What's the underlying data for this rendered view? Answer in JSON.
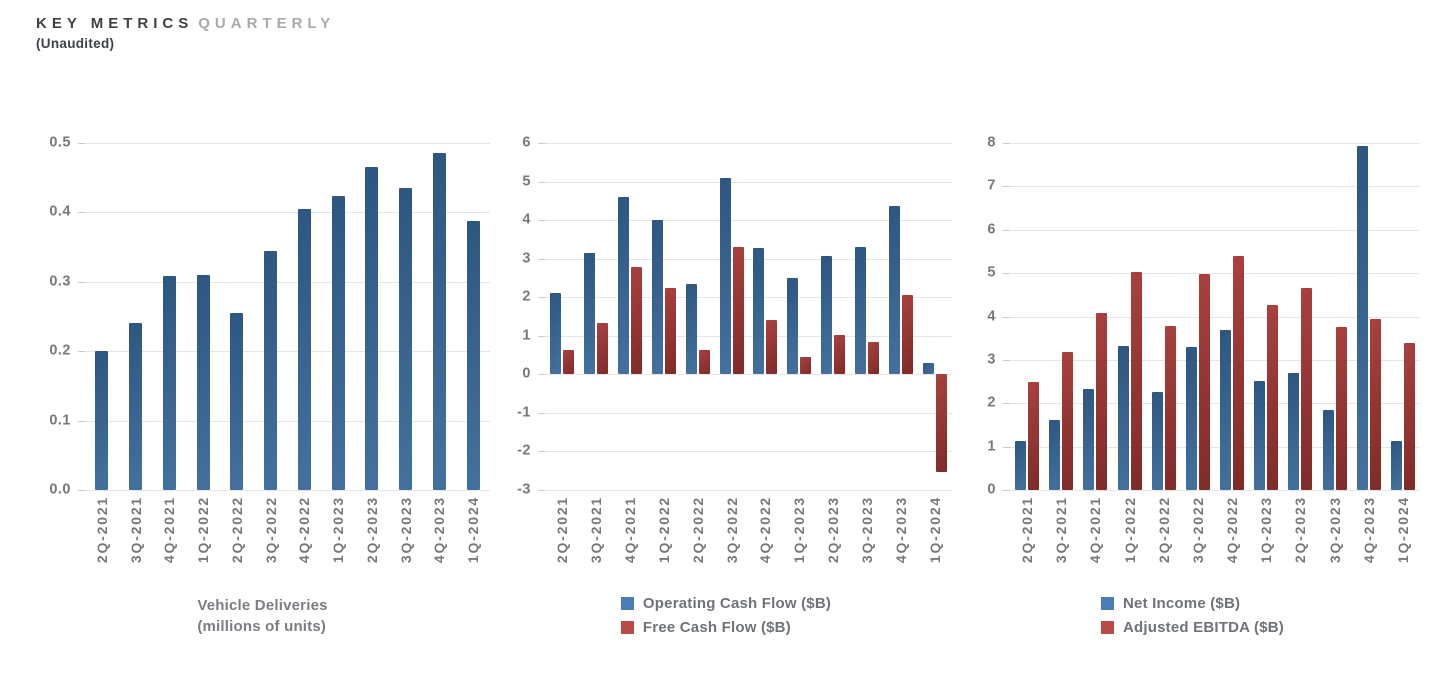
{
  "header": {
    "title_primary": "KEY METRICS",
    "title_secondary": "QUARTERLY",
    "subtitle": "(Unaudited)"
  },
  "categories": [
    "2Q-2021",
    "3Q-2021",
    "4Q-2021",
    "1Q-2022",
    "2Q-2022",
    "3Q-2022",
    "4Q-2022",
    "1Q-2023",
    "2Q-2023",
    "3Q-2023",
    "4Q-2023",
    "1Q-2024"
  ],
  "palette": {
    "blue_bar_from": "#2d5680",
    "blue_bar_to": "#44719f",
    "red_bar_from": "#a9413f",
    "red_bar_to": "#7f2b28",
    "legend_blue": "#4a7db8",
    "legend_red": "#bb4a46",
    "axis_text": "#76797c",
    "grid": "#e6e6e6",
    "title_dark": "#3d4247",
    "title_light": "#a8abae"
  },
  "chart_data": [
    {
      "type": "bar",
      "xlabel": "Vehicle Deliveries (millions of units)",
      "xlabel_lines": [
        "Vehicle Deliveries",
        "(millions of units)"
      ],
      "ylim": [
        0,
        0.5
      ],
      "yticks": [
        "0.5",
        "0.4",
        "0.3",
        "0.2",
        "0.1",
        "0.0"
      ],
      "grid": true,
      "legend": [],
      "categories": [
        "2Q-2021",
        "3Q-2021",
        "4Q-2021",
        "1Q-2022",
        "2Q-2022",
        "3Q-2022",
        "4Q-2022",
        "1Q-2023",
        "2Q-2023",
        "3Q-2023",
        "4Q-2023",
        "1Q-2024"
      ],
      "series": [
        {
          "name": "Vehicle Deliveries",
          "color": "blue",
          "values": [
            0.201,
            0.241,
            0.309,
            0.31,
            0.255,
            0.344,
            0.405,
            0.423,
            0.466,
            0.435,
            0.485,
            0.387
          ]
        }
      ]
    },
    {
      "type": "bar",
      "ylim": [
        -3,
        6
      ],
      "yticks": [
        "6",
        "5",
        "4",
        "3",
        "2",
        "1",
        "0",
        "-1",
        "-2",
        "-3"
      ],
      "grid": true,
      "legend": [
        "Operating Cash Flow ($B)",
        "Free Cash Flow ($B)"
      ],
      "legend_position": "bottom",
      "categories": [
        "2Q-2021",
        "3Q-2021",
        "4Q-2021",
        "1Q-2022",
        "2Q-2022",
        "3Q-2022",
        "4Q-2022",
        "1Q-2023",
        "2Q-2023",
        "3Q-2023",
        "4Q-2023",
        "1Q-2024"
      ],
      "series": [
        {
          "name": "Operating Cash Flow ($B)",
          "color": "blue",
          "values": [
            2.12,
            3.15,
            4.59,
            4.0,
            2.35,
            5.1,
            3.28,
            2.51,
            3.06,
            3.31,
            4.37,
            0.3
          ]
        },
        {
          "name": "Free Cash Flow ($B)",
          "color": "red",
          "values": [
            0.62,
            1.33,
            2.78,
            2.23,
            0.62,
            3.3,
            1.42,
            0.44,
            1.01,
            0.85,
            2.06,
            -2.53
          ]
        }
      ]
    },
    {
      "type": "bar",
      "ylim": [
        0,
        8
      ],
      "yticks": [
        "8",
        "7",
        "6",
        "5",
        "4",
        "3",
        "2",
        "1",
        "0"
      ],
      "grid": true,
      "legend": [
        "Net Income ($B)",
        "Adjusted EBITDA ($B)"
      ],
      "legend_position": "bottom",
      "categories": [
        "2Q-2021",
        "3Q-2021",
        "4Q-2021",
        "1Q-2022",
        "2Q-2022",
        "3Q-2022",
        "4Q-2022",
        "1Q-2023",
        "2Q-2023",
        "3Q-2023",
        "4Q-2023",
        "1Q-2024"
      ],
      "series": [
        {
          "name": "Net Income ($B)",
          "color": "blue",
          "values": [
            1.14,
            1.62,
            2.32,
            3.32,
            2.26,
            3.29,
            3.69,
            2.51,
            2.7,
            1.85,
            7.93,
            1.13
          ]
        },
        {
          "name": "Adjusted EBITDA ($B)",
          "color": "red",
          "values": [
            2.49,
            3.19,
            4.09,
            5.02,
            3.79,
            4.97,
            5.4,
            4.27,
            4.65,
            3.76,
            3.95,
            3.38
          ]
        }
      ]
    }
  ]
}
